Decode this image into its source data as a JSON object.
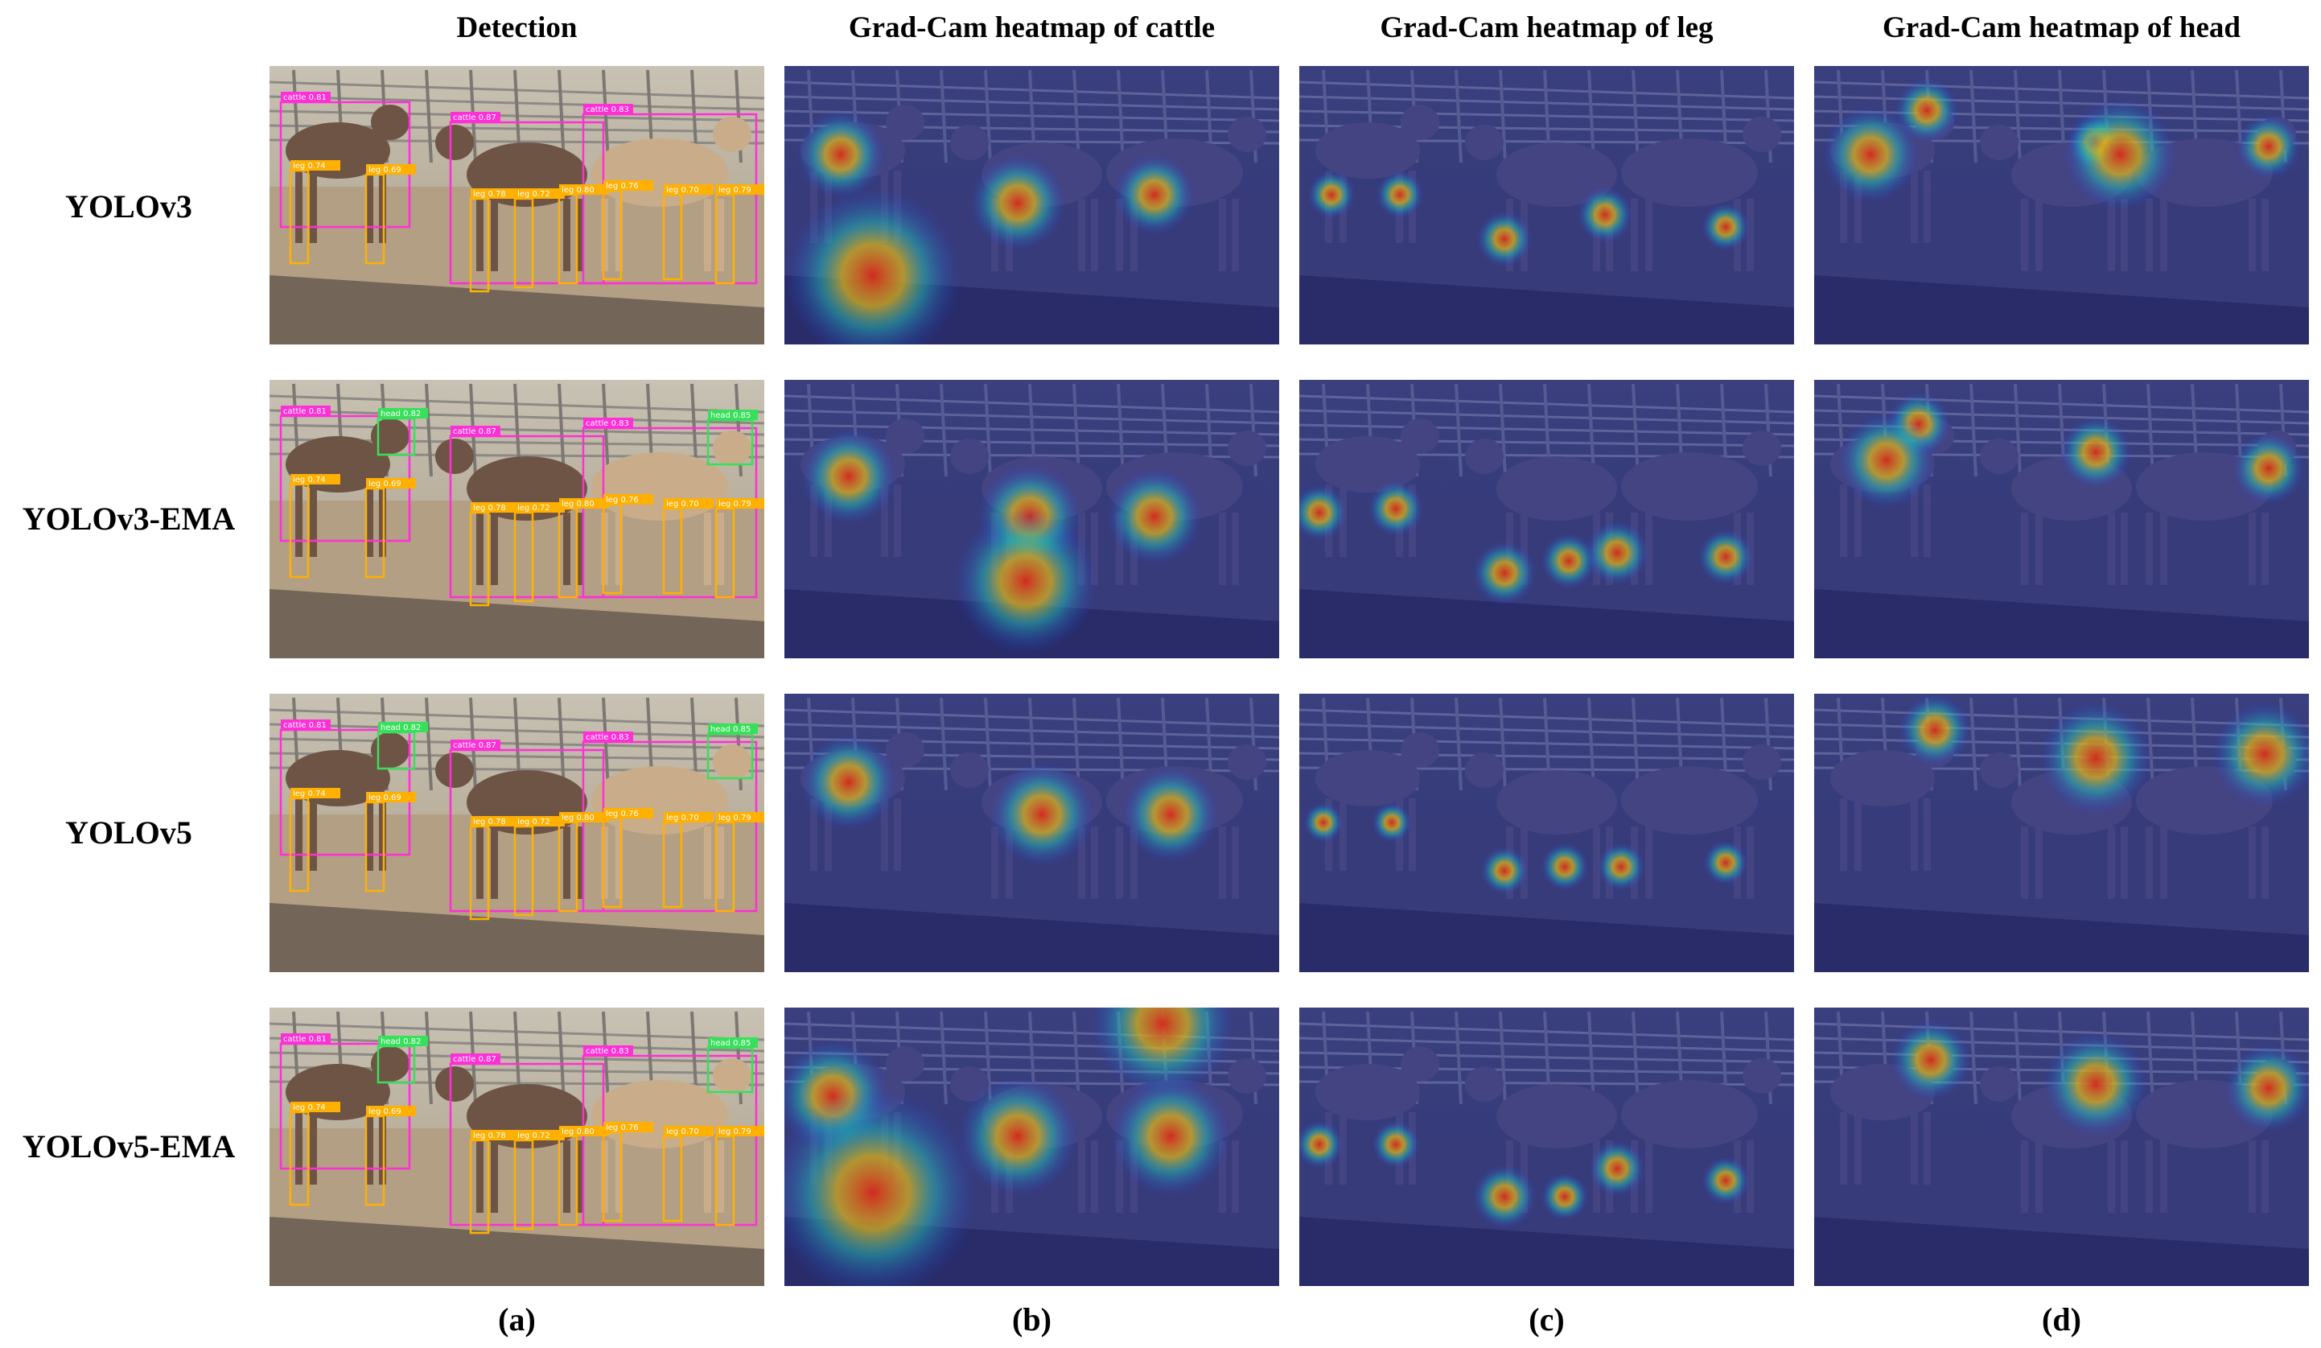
{
  "column_titles": [
    "Detection",
    "Grad-Cam heatmap of cattle",
    "Grad-Cam heatmap of leg",
    "Grad-Cam heatmap of head"
  ],
  "row_labels": [
    "YOLOv3",
    "YOLOv3-EMA",
    "YOLOv5",
    "YOLOv5-EMA"
  ],
  "panel_labels": [
    "(a)",
    "(b)",
    "(c)",
    "(d)"
  ],
  "detection_tags": {
    "cattle": [
      "cattle 0.81",
      "cattle 0.87",
      "cattle 0.83"
    ],
    "leg": [
      "leg 0.74",
      "leg 0.69",
      "leg 0.78",
      "leg 0.72",
      "leg 0.80",
      "leg 0.76",
      "leg 0.70",
      "leg 0.79"
    ],
    "head": [
      "head 0.82",
      "head 0.85"
    ]
  },
  "colors": {
    "cattle_box": "#ff2fd6",
    "leg_box": "#ffb000",
    "head_box": "#37e05a",
    "heat_bg": "#2c2f9a",
    "heat_hot": "#ff2a00"
  }
}
